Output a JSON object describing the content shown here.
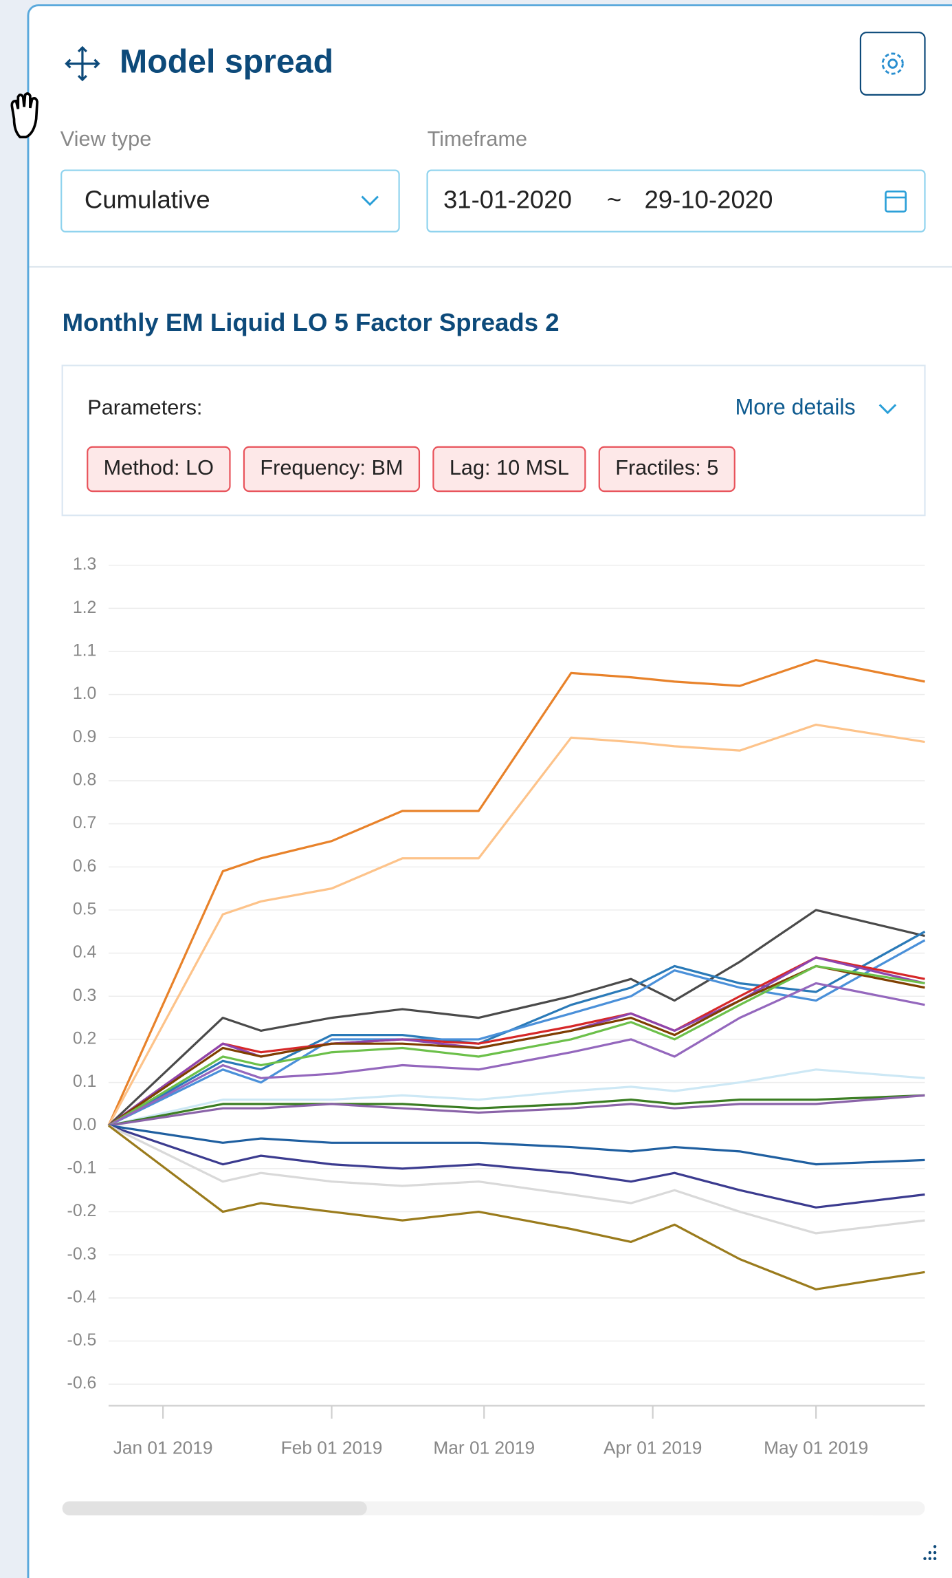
{
  "header": {
    "title": "Model spread"
  },
  "controls": {
    "view_type": {
      "label": "View type",
      "value": "Cumulative"
    },
    "timeframe": {
      "label": "Timeframe",
      "start": "31-01-2020",
      "separator": "~",
      "end": "29-10-2020"
    }
  },
  "card": {
    "title": "Monthly EM Liquid LO 5 Factor Spreads 2",
    "parameters_label": "Parameters:",
    "more_details": "More details",
    "tags": [
      "Method: LO",
      "Frequency: BM",
      "Lag: 10 MSL",
      "Fractiles: 5"
    ]
  },
  "chart_data": {
    "type": "line",
    "x": [
      "2018-12-22",
      "2019-01-12",
      "2019-01-19",
      "2019-02-01",
      "2019-02-14",
      "2019-02-28",
      "2019-03-17",
      "2019-03-28",
      "2019-04-05",
      "2019-04-17",
      "2019-05-01",
      "2019-05-21"
    ],
    "xlim": [
      "2018-12-22",
      "2019-05-21"
    ],
    "xticks": [
      {
        "value": "2019-01-01",
        "label": "Jan 01 2019"
      },
      {
        "value": "2019-02-01",
        "label": "Feb 01 2019"
      },
      {
        "value": "2019-03-01",
        "label": "Mar 01 2019"
      },
      {
        "value": "2019-04-01",
        "label": "Apr 01 2019"
      },
      {
        "value": "2019-05-01",
        "label": "May 01 2019"
      }
    ],
    "ylim": [
      -0.65,
      1.32
    ],
    "yticks": [
      -0.6,
      -0.5,
      -0.4,
      -0.3,
      -0.2,
      -0.1,
      {
        "value": 0,
        "label": "0.0"
      },
      0.1,
      0.2,
      0.3,
      0.4,
      0.5,
      0.6,
      0.7,
      0.8,
      0.9,
      {
        "value": 1,
        "label": "1.0"
      },
      1.1,
      1.2,
      1.3
    ],
    "grid": true,
    "series": [
      {
        "color": "#e8822a",
        "values": [
          0,
          0.59,
          0.62,
          0.66,
          0.73,
          0.73,
          1.05,
          1.04,
          1.03,
          1.02,
          1.08,
          1.03
        ]
      },
      {
        "color": "#fdc38a",
        "values": [
          0,
          0.49,
          0.52,
          0.55,
          0.62,
          0.62,
          0.9,
          0.89,
          0.88,
          0.87,
          0.93,
          0.89
        ]
      },
      {
        "color": "#4a4a4a",
        "values": [
          0,
          0.25,
          0.22,
          0.25,
          0.27,
          0.25,
          0.3,
          0.34,
          0.29,
          0.38,
          0.5,
          0.44
        ]
      },
      {
        "color": "#2a7ab8",
        "values": [
          0,
          0.15,
          0.13,
          0.21,
          0.21,
          0.19,
          0.28,
          0.32,
          0.37,
          0.33,
          0.31,
          0.45
        ]
      },
      {
        "color": "#4a90d9",
        "values": [
          0,
          0.13,
          0.1,
          0.2,
          0.2,
          0.2,
          0.26,
          0.3,
          0.36,
          0.32,
          0.29,
          0.43
        ]
      },
      {
        "color": "#d62728",
        "values": [
          0,
          0.19,
          0.17,
          0.19,
          0.2,
          0.19,
          0.23,
          0.26,
          0.22,
          0.3,
          0.39,
          0.34
        ]
      },
      {
        "color": "#8e44ad",
        "values": [
          0,
          0.19,
          0.16,
          0.19,
          0.2,
          0.18,
          0.22,
          0.26,
          0.22,
          0.29,
          0.39,
          0.33
        ]
      },
      {
        "color": "#7f3f00",
        "values": [
          0,
          0.18,
          0.16,
          0.19,
          0.19,
          0.18,
          0.22,
          0.25,
          0.21,
          0.29,
          0.37,
          0.32
        ]
      },
      {
        "color": "#6cc04a",
        "values": [
          0,
          0.16,
          0.14,
          0.17,
          0.18,
          0.16,
          0.2,
          0.24,
          0.2,
          0.28,
          0.37,
          0.33
        ]
      },
      {
        "color": "#9467bd",
        "values": [
          0,
          0.14,
          0.11,
          0.12,
          0.14,
          0.13,
          0.17,
          0.2,
          0.16,
          0.25,
          0.33,
          0.28
        ]
      },
      {
        "color": "#cde8f5",
        "values": [
          0,
          0.06,
          0.06,
          0.06,
          0.07,
          0.06,
          0.08,
          0.09,
          0.08,
          0.1,
          0.13,
          0.11
        ]
      },
      {
        "color": "#3b7d23",
        "values": [
          0,
          0.05,
          0.05,
          0.05,
          0.05,
          0.04,
          0.05,
          0.06,
          0.05,
          0.06,
          0.06,
          0.07
        ]
      },
      {
        "color": "#8a63a8",
        "values": [
          0,
          0.04,
          0.04,
          0.05,
          0.04,
          0.03,
          0.04,
          0.05,
          0.04,
          0.05,
          0.05,
          0.07
        ]
      },
      {
        "color": "#1f5fa0",
        "values": [
          0,
          -0.04,
          -0.03,
          -0.04,
          -0.04,
          -0.04,
          -0.05,
          -0.06,
          -0.05,
          -0.06,
          -0.09,
          -0.08
        ]
      },
      {
        "color": "#3b3b8f",
        "values": [
          0,
          -0.09,
          -0.07,
          -0.09,
          -0.1,
          -0.09,
          -0.11,
          -0.13,
          -0.11,
          -0.15,
          -0.19,
          -0.16
        ]
      },
      {
        "color": "#d9d9d9",
        "values": [
          0,
          -0.13,
          -0.11,
          -0.13,
          -0.14,
          -0.13,
          -0.16,
          -0.18,
          -0.15,
          -0.2,
          -0.25,
          -0.22
        ]
      },
      {
        "color": "#9a7b1c",
        "values": [
          0,
          -0.2,
          -0.18,
          -0.2,
          -0.22,
          -0.2,
          -0.24,
          -0.27,
          -0.23,
          -0.31,
          -0.38,
          -0.34
        ]
      }
    ]
  }
}
